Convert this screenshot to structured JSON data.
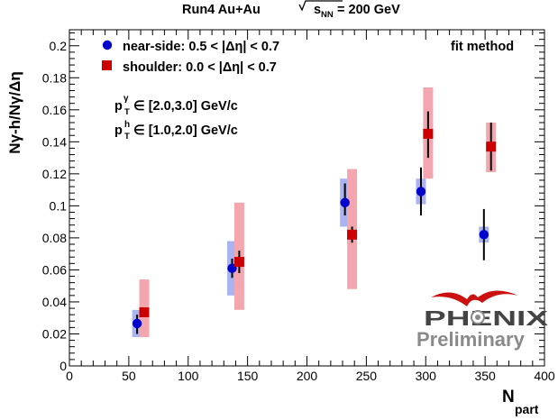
{
  "chart_data": {
    "type": "scatter",
    "title_prefix": "Run4 Au+Au",
    "title_sqrt_base": "s",
    "title_sqrt_sub": "NN",
    "title_suffix": " = 200 GeV",
    "xlabel_base": "N",
    "xlabel_sub": "part",
    "ylabel": "Nγ-h/Nγ/Δη",
    "xlim": [
      0,
      400
    ],
    "ylim": [
      0,
      0.21
    ],
    "x_ticks": [
      0,
      50,
      100,
      150,
      200,
      250,
      300,
      350,
      400
    ],
    "y_ticks": [
      0,
      0.02,
      0.04,
      0.06,
      0.08,
      0.1,
      0.12,
      0.14,
      0.16,
      0.18,
      0.2
    ],
    "method_label": "fit method",
    "annotations": {
      "pt_gamma_label": "p",
      "pt_gamma_sub": "T",
      "pt_gamma_sup": "γ",
      "pt_gamma_range": " ∈ [2.0,3.0] GeV/c",
      "pt_h_label": "p",
      "pt_h_sub": "T",
      "pt_h_sup": "h",
      "pt_h_range": " ∈ [1.0,2.0] GeV/c"
    },
    "logo": {
      "text": "PHENIX",
      "subtitle": "Preliminary"
    },
    "series": [
      {
        "name": "near-side: 0.5 < |Δη| < 0.7",
        "marker": "circle",
        "color": "#0000cc",
        "sys_color": "#aab4f0",
        "points": [
          {
            "x": 57,
            "y": 0.0265,
            "stat": [
              0.02,
              0.032
            ],
            "sys": [
              0.018,
              0.035
            ]
          },
          {
            "x": 137,
            "y": 0.061,
            "stat": [
              0.055,
              0.067
            ],
            "sys": [
              0.044,
              0.078
            ]
          },
          {
            "x": 232,
            "y": 0.102,
            "stat": [
              0.094,
              0.114
            ],
            "sys": [
              0.087,
              0.117
            ]
          },
          {
            "x": 296,
            "y": 0.109,
            "stat": [
              0.094,
              0.124
            ],
            "sys": [
              0.101,
              0.117
            ]
          },
          {
            "x": 349,
            "y": 0.082,
            "stat": [
              0.066,
              0.098
            ],
            "sys": [
              0.077,
              0.087
            ]
          }
        ]
      },
      {
        "name": "shoulder: 0.0 < |Δη| < 0.7",
        "marker": "square",
        "color": "#cc0000",
        "sys_color": "#f4a6ae",
        "points": [
          {
            "x": 63,
            "y": 0.0335,
            "stat": [
              0.031,
              0.036
            ],
            "sys": [
              0.018,
              0.054
            ]
          },
          {
            "x": 143,
            "y": 0.065,
            "stat": [
              0.058,
              0.072
            ],
            "sys": [
              0.035,
              0.102
            ]
          },
          {
            "x": 238,
            "y": 0.082,
            "stat": [
              0.077,
              0.087
            ],
            "sys": [
              0.048,
              0.123
            ]
          },
          {
            "x": 302,
            "y": 0.145,
            "stat": [
              0.13,
              0.159
            ],
            "sys": [
              0.117,
              0.174
            ]
          },
          {
            "x": 355,
            "y": 0.137,
            "stat": [
              0.122,
              0.152
            ],
            "sys": [
              0.121,
              0.152
            ]
          }
        ]
      }
    ]
  }
}
